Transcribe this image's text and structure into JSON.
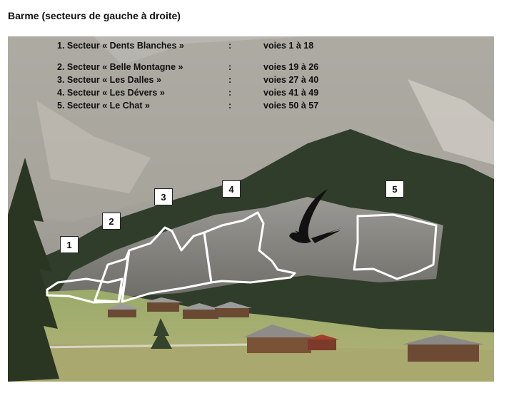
{
  "title": "Barme (secteurs de gauche à droite)",
  "legend": [
    {
      "name": "1. Secteur « Dents Blanches »",
      "sep": ":",
      "range": "voies 1 à 18"
    },
    {
      "name": "2. Secteur « Belle Montagne »",
      "sep": ":",
      "range": "voies 19 à 26"
    },
    {
      "name": "3. Secteur « Les Dalles »",
      "sep": ":",
      "range": "voies 27 à 40"
    },
    {
      "name": "4. Secteur « Les Dévers »",
      "sep": ":",
      "range": "voies 41 à 49"
    },
    {
      "name": "5. Secteur « Le Chat »",
      "sep": ":",
      "range": "voies 50 à 57"
    }
  ],
  "markers": [
    "1",
    "2",
    "3",
    "4",
    "5"
  ],
  "colors": {
    "outline": "#ffffff",
    "sky": "#c9cbcc",
    "rock": "#8f8f8c",
    "forest": "#2f3d2a",
    "meadow": "#8ea062"
  },
  "icons": {
    "logo": "swallow-bird-icon"
  }
}
